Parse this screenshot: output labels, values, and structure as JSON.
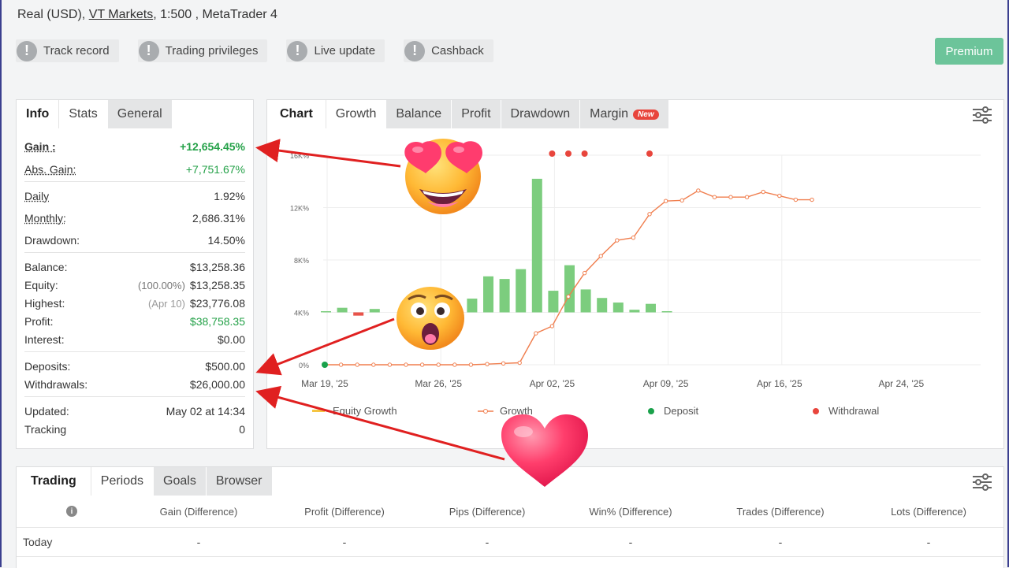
{
  "account": {
    "prefix": "Real (USD), ",
    "broker": "VT Markets",
    "suffix": ", 1:500 , MetaTrader 4"
  },
  "badges": [
    {
      "label": "Track record"
    },
    {
      "label": "Trading privileges"
    },
    {
      "label": "Live update"
    },
    {
      "label": "Cashback"
    }
  ],
  "premium_label": "Premium",
  "left_tabs": [
    "Info",
    "Stats",
    "General"
  ],
  "stats": {
    "gain": {
      "label": "Gain :",
      "value": "+12,654.45%"
    },
    "abs_gain": {
      "label": "Abs. Gain:",
      "value": "+7,751.67%"
    },
    "daily": {
      "label": "Daily",
      "value": "1.92%"
    },
    "monthly": {
      "label": "Monthly:",
      "value": "2,686.31%"
    },
    "drawdown": {
      "label": "Drawdown:",
      "value": "14.50%"
    },
    "balance": {
      "label": "Balance:",
      "value": "$13,258.36"
    },
    "equity": {
      "label": "Equity:",
      "note": "(100.00%)",
      "value": "$13,258.35"
    },
    "highest": {
      "label": "Highest:",
      "note": "(Apr 10)",
      "value": "$23,776.08"
    },
    "profit": {
      "label": "Profit:",
      "value": "$38,758.35"
    },
    "interest": {
      "label": "Interest:",
      "value": "$0.00"
    },
    "deposits": {
      "label": "Deposits:",
      "value": "$500.00"
    },
    "withdrawals": {
      "label": "Withdrawals:",
      "value": "$26,000.00"
    },
    "updated": {
      "label": "Updated:",
      "value": "May 02 at 14:34"
    },
    "tracking": {
      "label": "Tracking",
      "value": "0"
    }
  },
  "chart_tabs": [
    "Chart",
    "Growth",
    "Balance",
    "Profit",
    "Drawdown",
    "Margin"
  ],
  "new_badge": "New",
  "legend": [
    "Equity Growth",
    "Growth",
    "Deposit",
    "Withdrawal"
  ],
  "colors": {
    "bar_green": "#7ccd7e",
    "bar_red": "#e8534a",
    "growth_line": "#f07e4e",
    "deposit": "#1aa14b",
    "withdrawal": "#e8453c",
    "premium": "#6cc49a"
  },
  "chart_data": {
    "type": "bar",
    "y_tick_labels": [
      "0%",
      "4K%",
      "8K%",
      "12K%",
      "16K%"
    ],
    "ylim": [
      0,
      16000
    ],
    "x_tick_labels": [
      "Mar 19, '25",
      "Mar 26, '25",
      "Apr 02, '25",
      "Apr 09, '25",
      "Apr 16, '25",
      "Apr 24, '25"
    ],
    "bar_days": [
      0,
      1,
      2,
      3,
      9,
      10,
      11,
      12,
      13,
      14,
      15,
      16,
      17,
      18,
      19,
      20,
      21
    ],
    "bar_values": [
      60,
      350,
      -250,
      260,
      1050,
      2750,
      2550,
      3300,
      10200,
      1650,
      3600,
      1750,
      1100,
      750,
      200,
      650,
      0
    ],
    "growth_x_days": [
      0,
      1,
      2,
      3,
      4,
      5,
      6,
      7,
      8,
      9,
      10,
      11,
      12,
      13,
      14,
      15,
      16,
      17,
      18,
      19,
      20,
      21,
      22,
      23,
      24,
      25,
      26,
      27,
      28,
      29,
      30
    ],
    "growth_values": [
      0,
      0,
      0,
      0,
      0,
      0,
      0,
      0,
      0,
      0,
      50,
      100,
      150,
      2400,
      2950,
      5200,
      7000,
      8300,
      9500,
      9700,
      11500,
      12500,
      12550,
      13300,
      12800,
      12800,
      12800,
      13200,
      12900,
      12600,
      12600
    ],
    "deposit_days": [
      0
    ],
    "withdrawal_days": [
      14,
      15,
      16,
      20
    ]
  },
  "bottom_tabs": [
    "Trading",
    "Periods",
    "Goals",
    "Browser"
  ],
  "periods_headers": [
    "Gain (Difference)",
    "Profit (Difference)",
    "Pips (Difference)",
    "Win% (Difference)",
    "Trades (Difference)",
    "Lots (Difference)"
  ],
  "periods_rows": [
    {
      "label": "Today",
      "cells": [
        "-",
        "-",
        "-",
        "-",
        "-",
        "-"
      ]
    }
  ]
}
